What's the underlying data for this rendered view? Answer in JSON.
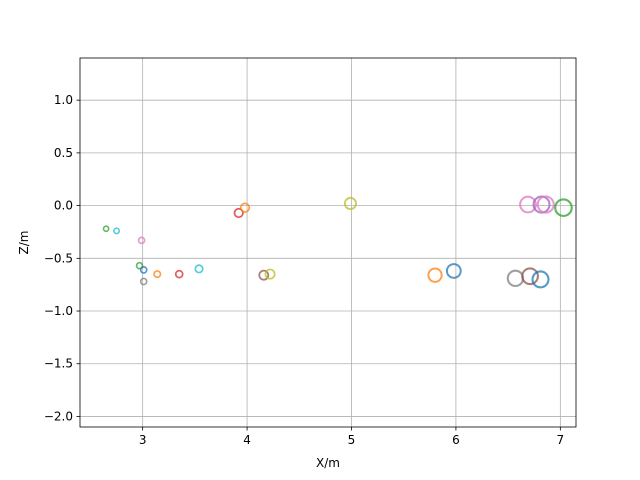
{
  "chart_data": {
    "type": "scatter",
    "title": "",
    "xlabel": "X/m",
    "ylabel": "Z/m",
    "xlim": [
      2.4,
      7.15
    ],
    "ylim": [
      -2.1,
      1.4
    ],
    "xticks": [
      3,
      4,
      5,
      6,
      7
    ],
    "yticks": [
      1.0,
      0.5,
      0.0,
      -0.5,
      -1.0,
      -1.5,
      -2.0
    ],
    "xtick_labels": [
      "3",
      "4",
      "5",
      "6",
      "7"
    ],
    "ytick_labels": [
      "1.0",
      "0.5",
      "0.0",
      "−0.5",
      "−1.0",
      "−1.5",
      "−2.0"
    ],
    "grid": true,
    "legend": "none",
    "marker": "hollow circle, size grows with X",
    "points": [
      {
        "x": 2.65,
        "y": -0.22,
        "color": "#2ca02c"
      },
      {
        "x": 2.75,
        "y": -0.24,
        "color": "#17becf"
      },
      {
        "x": 2.97,
        "y": -0.57,
        "color": "#2ca02c"
      },
      {
        "x": 2.99,
        "y": -0.33,
        "color": "#e377c2"
      },
      {
        "x": 3.01,
        "y": -0.61,
        "color": "#1f77b4"
      },
      {
        "x": 3.01,
        "y": -0.72,
        "color": "#7f7f7f"
      },
      {
        "x": 3.14,
        "y": -0.65,
        "color": "#ff7f0e"
      },
      {
        "x": 3.35,
        "y": -0.65,
        "color": "#d62728"
      },
      {
        "x": 3.54,
        "y": -0.6,
        "color": "#17becf"
      },
      {
        "x": 3.92,
        "y": -0.07,
        "color": "#d62728"
      },
      {
        "x": 3.98,
        "y": -0.02,
        "color": "#ff7f0e"
      },
      {
        "x": 4.16,
        "y": -0.66,
        "color": "#8c564b"
      },
      {
        "x": 4.22,
        "y": -0.65,
        "color": "#bcbd22"
      },
      {
        "x": 4.99,
        "y": 0.02,
        "color": "#bcbd22"
      },
      {
        "x": 5.8,
        "y": -0.66,
        "color": "#ff7f0e"
      },
      {
        "x": 5.98,
        "y": -0.62,
        "color": "#1f77b4"
      },
      {
        "x": 6.57,
        "y": -0.69,
        "color": "#7f7f7f"
      },
      {
        "x": 6.69,
        "y": 0.01,
        "color": "#e377c2"
      },
      {
        "x": 6.71,
        "y": -0.67,
        "color": "#8c564b"
      },
      {
        "x": 6.81,
        "y": -0.7,
        "color": "#1f77b4"
      },
      {
        "x": 6.82,
        "y": 0.01,
        "color": "#9467bd"
      },
      {
        "x": 6.86,
        "y": 0.01,
        "color": "#e377c2"
      },
      {
        "x": 7.03,
        "y": -0.02,
        "color": "#2ca02c"
      }
    ]
  }
}
